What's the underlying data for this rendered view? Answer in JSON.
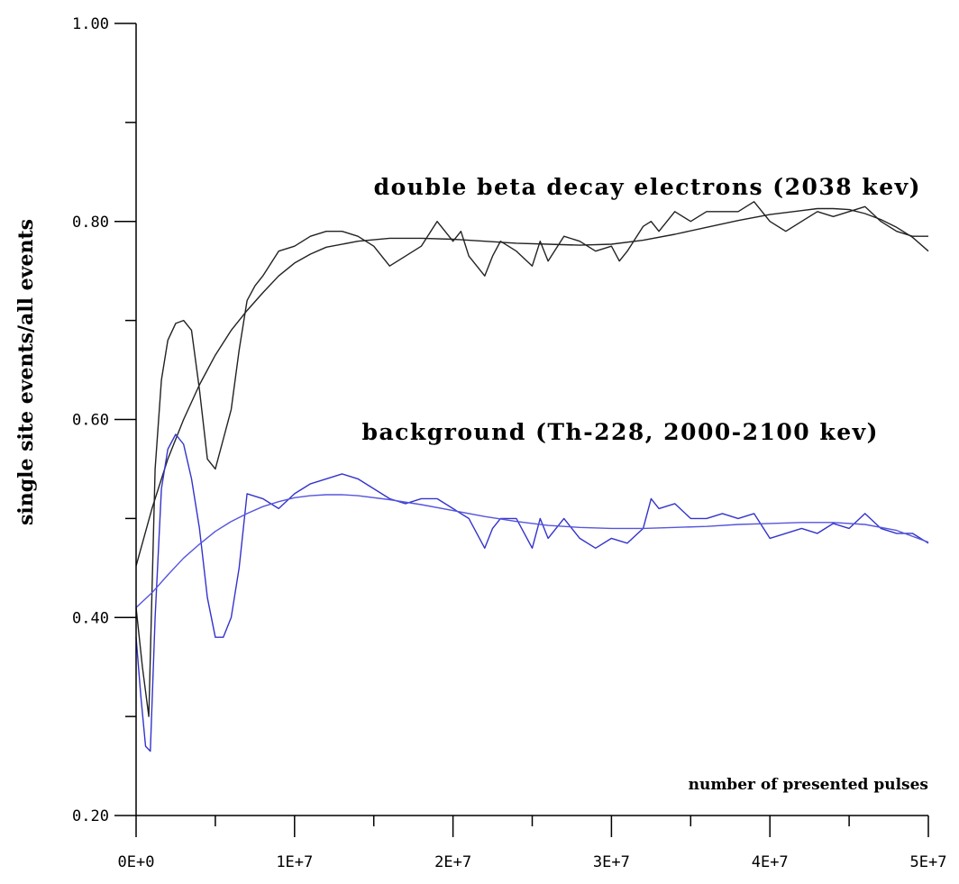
{
  "chart_data": {
    "type": "line",
    "xlabel": "number of presented pulses",
    "ylabel": "single site events/all events",
    "xlim": [
      0,
      50000000
    ],
    "ylim": [
      0.2,
      1.0
    ],
    "x_ticks": [
      0,
      10000000,
      20000000,
      30000000,
      40000000,
      50000000
    ],
    "x_tick_labels": [
      "0E+0",
      "1E+7",
      "2E+7",
      "3E+7",
      "4E+7",
      "5E+7"
    ],
    "y_ticks": [
      0.2,
      0.4,
      0.6,
      0.8,
      1.0
    ],
    "y_tick_labels": [
      "0.20",
      "0.40",
      "0.60",
      "0.80",
      "1.00"
    ],
    "y_minor_ticks": [
      0.3,
      0.5,
      0.7,
      0.9
    ],
    "x_minor_ticks": [
      5000000,
      15000000,
      25000000,
      35000000,
      45000000
    ],
    "grid": false,
    "annotations": [
      {
        "text": "double beta decay electrons (2038 kev)",
        "series": "electrons"
      },
      {
        "text": "background (Th-228, 2000-2100 kev)",
        "series": "background"
      }
    ],
    "series": [
      {
        "id": "electrons",
        "color": "#222222",
        "x": [
          0,
          400000,
          800000,
          1200000,
          1600000,
          2000000,
          2500000,
          3000000,
          3500000,
          4000000,
          4500000,
          5000000,
          5500000,
          6000000,
          6500000,
          7000000,
          7500000,
          8000000,
          9000000,
          10000000,
          11000000,
          12000000,
          13000000,
          14000000,
          15000000,
          16000000,
          17000000,
          18000000,
          19000000,
          20000000,
          20500000,
          21000000,
          21500000,
          22000000,
          22500000,
          23000000,
          24000000,
          25000000,
          25500000,
          26000000,
          27000000,
          28000000,
          29000000,
          30000000,
          30500000,
          31000000,
          32000000,
          32500000,
          33000000,
          34000000,
          35000000,
          36000000,
          37000000,
          38000000,
          39000000,
          40000000,
          41000000,
          42000000,
          43000000,
          44000000,
          45000000,
          46000000,
          47000000,
          48000000,
          49000000,
          50000000
        ],
        "values": [
          0.41,
          0.35,
          0.3,
          0.55,
          0.64,
          0.68,
          0.697,
          0.7,
          0.69,
          0.63,
          0.56,
          0.55,
          0.58,
          0.61,
          0.67,
          0.72,
          0.735,
          0.745,
          0.77,
          0.775,
          0.785,
          0.79,
          0.79,
          0.785,
          0.775,
          0.755,
          0.765,
          0.775,
          0.8,
          0.78,
          0.79,
          0.765,
          0.755,
          0.745,
          0.765,
          0.78,
          0.77,
          0.755,
          0.78,
          0.76,
          0.785,
          0.78,
          0.77,
          0.775,
          0.76,
          0.77,
          0.795,
          0.8,
          0.79,
          0.81,
          0.8,
          0.81,
          0.81,
          0.81,
          0.82,
          0.8,
          0.79,
          0.8,
          0.81,
          0.805,
          0.81,
          0.815,
          0.8,
          0.79,
          0.785,
          0.785
        ]
      },
      {
        "id": "electrons-fit",
        "color": "#222222",
        "x": [
          0,
          1000000,
          2000000,
          3000000,
          4000000,
          5000000,
          6000000,
          7000000,
          8000000,
          9000000,
          10000000,
          11000000,
          12000000,
          14000000,
          16000000,
          18000000,
          20000000,
          22000000,
          24000000,
          26000000,
          28000000,
          30000000,
          32000000,
          34000000,
          36000000,
          38000000,
          40000000,
          42000000,
          43000000,
          44000000,
          45000000,
          46000000,
          47000000,
          48000000,
          49000000,
          50000000
        ],
        "values": [
          0.452,
          0.51,
          0.56,
          0.6,
          0.635,
          0.665,
          0.69,
          0.71,
          0.728,
          0.745,
          0.758,
          0.767,
          0.774,
          0.78,
          0.783,
          0.783,
          0.782,
          0.78,
          0.778,
          0.777,
          0.776,
          0.777,
          0.781,
          0.787,
          0.794,
          0.801,
          0.807,
          0.811,
          0.813,
          0.813,
          0.812,
          0.808,
          0.802,
          0.794,
          0.784,
          0.77
        ]
      },
      {
        "id": "background",
        "color": "#3333cc",
        "x": [
          0,
          300000,
          600000,
          900000,
          1200000,
          1600000,
          2000000,
          2500000,
          3000000,
          3500000,
          4000000,
          4500000,
          5000000,
          5500000,
          6000000,
          6500000,
          7000000,
          8000000,
          9000000,
          10000000,
          11000000,
          12000000,
          13000000,
          14000000,
          15000000,
          16000000,
          17000000,
          18000000,
          19000000,
          20000000,
          21000000,
          22000000,
          22500000,
          23000000,
          24000000,
          25000000,
          25500000,
          26000000,
          27000000,
          28000000,
          29000000,
          30000000,
          31000000,
          32000000,
          32500000,
          33000000,
          34000000,
          35000000,
          36000000,
          37000000,
          38000000,
          39000000,
          40000000,
          41000000,
          42000000,
          43000000,
          44000000,
          45000000,
          46000000,
          47000000,
          48000000,
          49000000,
          50000000
        ],
        "values": [
          0.38,
          0.32,
          0.27,
          0.265,
          0.4,
          0.53,
          0.57,
          0.585,
          0.575,
          0.54,
          0.49,
          0.42,
          0.38,
          0.38,
          0.4,
          0.45,
          0.525,
          0.52,
          0.51,
          0.525,
          0.535,
          0.54,
          0.545,
          0.54,
          0.53,
          0.52,
          0.515,
          0.52,
          0.52,
          0.51,
          0.5,
          0.47,
          0.49,
          0.5,
          0.5,
          0.47,
          0.5,
          0.48,
          0.5,
          0.48,
          0.47,
          0.48,
          0.475,
          0.49,
          0.52,
          0.51,
          0.515,
          0.5,
          0.5,
          0.505,
          0.5,
          0.505,
          0.48,
          0.485,
          0.49,
          0.485,
          0.495,
          0.49,
          0.505,
          0.49,
          0.485,
          0.485,
          0.475
        ]
      },
      {
        "id": "background-fit",
        "color": "#5555dd",
        "x": [
          0,
          1000000,
          2000000,
          3000000,
          4000000,
          5000000,
          6000000,
          7000000,
          8000000,
          9000000,
          10000000,
          11000000,
          12000000,
          13000000,
          14000000,
          16000000,
          18000000,
          20000000,
          22000000,
          24000000,
          26000000,
          28000000,
          30000000,
          32000000,
          34000000,
          36000000,
          38000000,
          40000000,
          42000000,
          44000000,
          46000000,
          48000000,
          50000000
        ],
        "values": [
          0.41,
          0.425,
          0.443,
          0.46,
          0.474,
          0.487,
          0.497,
          0.505,
          0.512,
          0.517,
          0.521,
          0.523,
          0.524,
          0.524,
          0.523,
          0.519,
          0.514,
          0.508,
          0.502,
          0.497,
          0.493,
          0.491,
          0.49,
          0.49,
          0.491,
          0.492,
          0.494,
          0.495,
          0.496,
          0.496,
          0.494,
          0.488,
          0.476
        ]
      }
    ]
  }
}
